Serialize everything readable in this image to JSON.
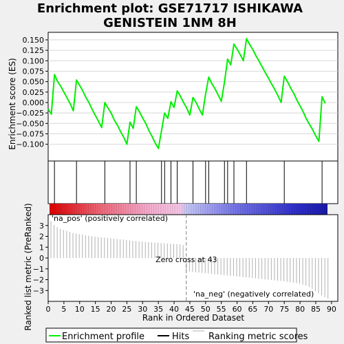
{
  "title_lines": [
    "Enrichment plot: GSE71717 ISHIKAWA",
    "GENISTEIN 1NM 8H"
  ],
  "ylabel_top": "Enrichment score (ES)",
  "ylabel_bottom": "Ranked list metric (PreRanked)",
  "xlabel": "Rank in Ordered Dataset",
  "label_pos": "'na_pos' (positively correlated)",
  "label_neg": "'na_neg' (negatively correlated)",
  "zero_cross_label": "Zero cross at 43",
  "legend": {
    "enrichment": "Enrichment profile",
    "hits": "Hits",
    "ranking": "Ranking metric scores"
  },
  "colors": {
    "enrichment": "#00ee00",
    "hits": "#000000",
    "ranking": "#b0b0b0",
    "pos_label": "#cc0000",
    "neg_label": "#0000cc"
  },
  "chart_data": {
    "type": "line",
    "x_range": [
      0,
      92
    ],
    "x_ticks": [
      0,
      5,
      10,
      15,
      20,
      25,
      30,
      35,
      40,
      45,
      50,
      55,
      60,
      65,
      70,
      75,
      80,
      85,
      90
    ],
    "es_ylim": [
      -0.14,
      0.168
    ],
    "es_ticks": [
      -0.1,
      -0.075,
      -0.05,
      -0.025,
      0.0,
      0.025,
      0.05,
      0.075,
      0.1,
      0.125,
      0.15
    ],
    "es_tick_labels": [
      "−0.100",
      "−0.075",
      "−0.050",
      "−0.025",
      "0.000",
      "0.025",
      "0.050",
      "0.075",
      "0.100",
      "0.125",
      "0.150"
    ],
    "enrichment_profile": {
      "x": [
        0,
        1,
        2,
        3,
        4,
        5,
        6,
        7,
        8,
        9,
        10,
        11,
        12,
        13,
        14,
        15,
        16,
        17,
        18,
        19,
        20,
        21,
        22,
        23,
        24,
        25,
        26,
        27,
        28,
        29,
        30,
        31,
        32,
        33,
        34,
        35,
        36,
        37,
        38,
        39,
        40,
        41,
        42,
        43,
        44,
        45,
        46,
        47,
        48,
        49,
        50,
        51,
        52,
        53,
        54,
        55,
        56,
        57,
        58,
        59,
        60,
        61,
        62,
        63,
        64,
        65,
        66,
        67,
        68,
        69,
        70,
        71,
        72,
        73,
        74,
        75,
        76,
        77,
        78,
        79,
        80,
        81,
        82,
        83,
        84,
        85,
        86,
        87,
        88
      ],
      "y": [
        -0.015,
        -0.028,
        0.067,
        0.05,
        0.039,
        0.025,
        0.011,
        -0.003,
        -0.02,
        0.054,
        0.041,
        0.028,
        0.012,
        -0.001,
        -0.017,
        -0.031,
        -0.045,
        -0.06,
        0.0,
        -0.013,
        -0.025,
        -0.042,
        -0.054,
        -0.07,
        -0.083,
        -0.1,
        -0.047,
        -0.062,
        -0.01,
        -0.022,
        -0.037,
        -0.05,
        -0.067,
        -0.081,
        -0.097,
        -0.11,
        -0.068,
        -0.025,
        -0.038,
        0.002,
        -0.012,
        0.028,
        0.015,
        0.0,
        -0.013,
        -0.03,
        0.012,
        0.0,
        -0.016,
        -0.03,
        0.02,
        0.061,
        0.045,
        0.033,
        0.018,
        0.003,
        0.049,
        0.104,
        0.09,
        0.14,
        0.128,
        0.115,
        0.1,
        0.153,
        0.139,
        0.127,
        0.112,
        0.099,
        0.085,
        0.071,
        0.058,
        0.044,
        0.031,
        0.016,
        0.0,
        0.063,
        0.05,
        0.035,
        0.022,
        0.006,
        -0.008,
        -0.022,
        -0.039,
        -0.052,
        -0.065,
        -0.08,
        -0.093,
        0.014,
        -0.002
      ]
    },
    "hits": [
      2,
      9,
      18,
      26,
      28,
      36,
      37,
      39,
      41,
      46,
      50,
      51,
      56,
      57,
      59,
      63,
      75,
      87
    ],
    "metric_ylim": [
      -4,
      4
    ],
    "metric_ticks": [
      3,
      2,
      1,
      0,
      -1,
      -2,
      -3
    ],
    "metric_tick_labels": [
      "3",
      "2",
      "1",
      "0",
      "−1",
      "−2",
      "−3"
    ],
    "zero_cross": 43,
    "ranking_metric": {
      "x": [
        0,
        1,
        2,
        3,
        4,
        5,
        6,
        7,
        8,
        9,
        10,
        11,
        12,
        13,
        14,
        15,
        16,
        17,
        18,
        19,
        20,
        21,
        22,
        23,
        24,
        25,
        26,
        27,
        28,
        29,
        30,
        31,
        32,
        33,
        34,
        35,
        36,
        37,
        38,
        39,
        40,
        41,
        42,
        43,
        44,
        45,
        46,
        47,
        48,
        49,
        50,
        51,
        52,
        53,
        54,
        55,
        56,
        57,
        58,
        59,
        60,
        61,
        62,
        63,
        64,
        65,
        66,
        67,
        68,
        69,
        70,
        71,
        72,
        73,
        74,
        75,
        76,
        77,
        78,
        79,
        80,
        81,
        82,
        83,
        84,
        85,
        86,
        87,
        88
      ],
      "y": [
        3.4,
        3.05,
        2.85,
        2.7,
        2.6,
        2.5,
        2.4,
        2.3,
        2.25,
        2.2,
        2.15,
        2.1,
        2.05,
        2.0,
        1.97,
        1.93,
        1.9,
        1.87,
        1.84,
        1.81,
        1.78,
        1.75,
        1.72,
        1.69,
        1.66,
        1.63,
        1.6,
        1.57,
        1.54,
        1.51,
        1.48,
        1.46,
        1.44,
        1.42,
        1.4,
        1.38,
        1.36,
        1.34,
        1.32,
        1.3,
        1.28,
        1.26,
        1.2,
        -1.2,
        -1.25,
        -1.28,
        -1.31,
        -1.34,
        -1.37,
        -1.4,
        -1.43,
        -1.46,
        -1.49,
        -1.52,
        -1.55,
        -1.58,
        -1.61,
        -1.64,
        -1.67,
        -1.7,
        -1.73,
        -1.76,
        -1.79,
        -1.82,
        -1.85,
        -1.88,
        -1.91,
        -1.94,
        -1.97,
        -2.0,
        -2.03,
        -2.06,
        -2.09,
        -2.12,
        -2.15,
        -2.19,
        -2.23,
        -2.27,
        -2.32,
        -2.38,
        -2.45,
        -2.55,
        -2.68,
        -2.85,
        -3.05,
        -3.25,
        -3.45,
        -3.62,
        -3.75
      ]
    }
  }
}
